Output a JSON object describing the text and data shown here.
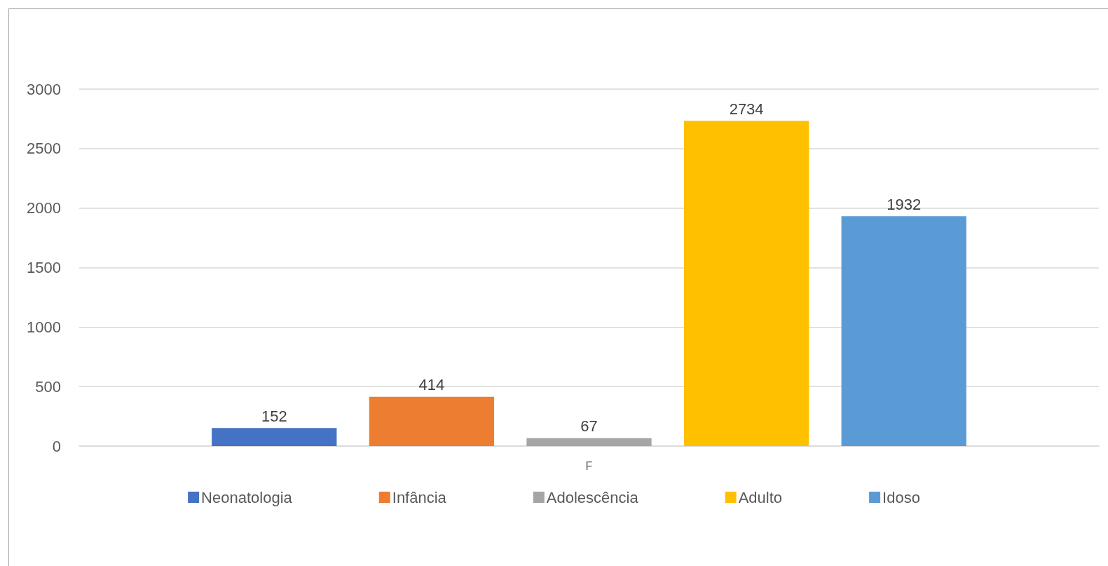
{
  "chart_data": {
    "type": "bar",
    "categories": [
      "F"
    ],
    "series": [
      {
        "name": "Neonatologia",
        "color": "#4472c4",
        "values": [
          152
        ]
      },
      {
        "name": "Infância",
        "color": "#ed7d31",
        "values": [
          414
        ]
      },
      {
        "name": "Adolescência",
        "color": "#a5a5a5",
        "values": [
          67
        ]
      },
      {
        "name": "Adulto",
        "color": "#ffc000",
        "values": [
          2734
        ]
      },
      {
        "name": "Idoso",
        "color": "#5b9bd5",
        "values": [
          1932
        ]
      }
    ],
    "ylim": [
      0,
      3000
    ],
    "yticks": [
      0,
      500,
      1000,
      1500,
      2000,
      2500,
      3000
    ],
    "grid": "y",
    "legend": "bottom",
    "data_labels": true
  }
}
